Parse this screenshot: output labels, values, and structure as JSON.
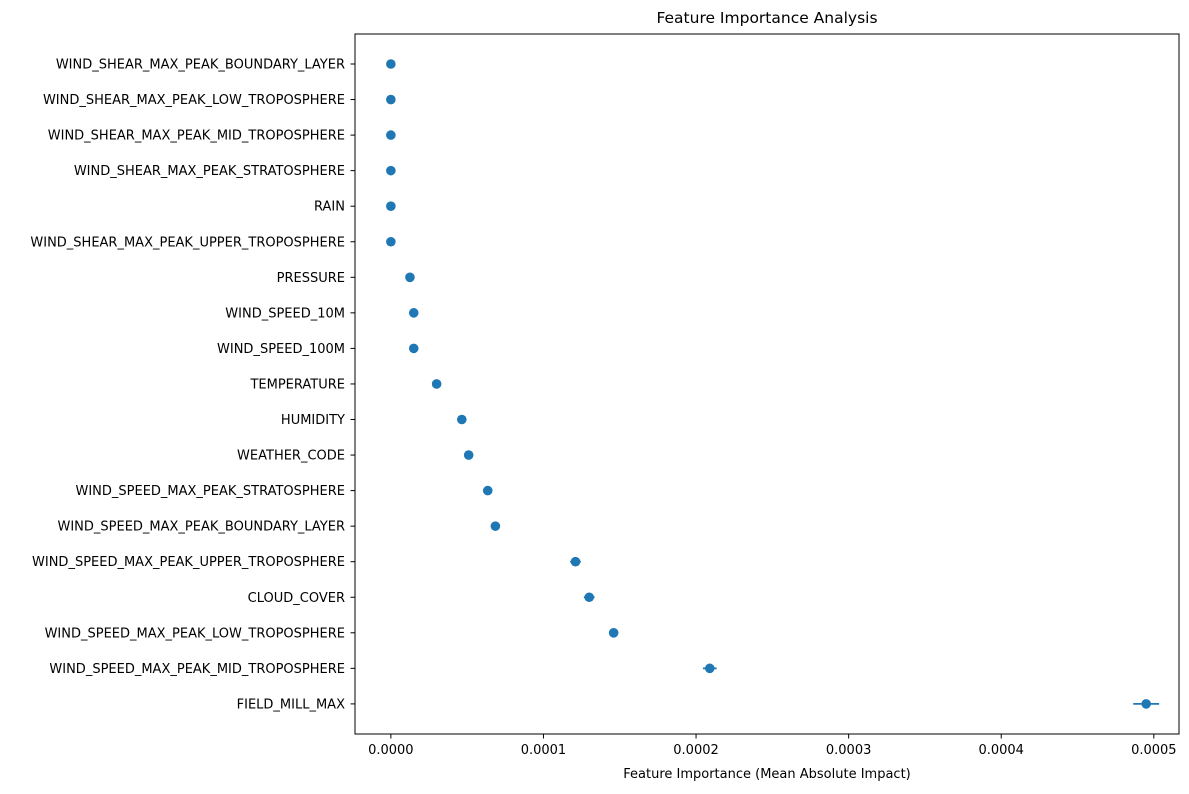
{
  "chart_data": {
    "type": "scatter",
    "title": "Feature Importance Analysis",
    "xlabel": "Feature Importance (Mean Absolute Impact)",
    "ylabel": "",
    "xlim": [
      -2.35e-05,
      0.0005165
    ],
    "x_ticks": [
      0,
      0.0001,
      0.0002,
      0.0003,
      0.0004,
      0.0005
    ],
    "x_tick_labels": [
      "0.0000",
      "0.0001",
      "0.0002",
      "0.0003",
      "0.0004",
      "0.0005"
    ],
    "grid": false,
    "legend": "none",
    "marker_color": "#1f77b4",
    "categories": [
      "WIND_SHEAR_MAX_PEAK_BOUNDARY_LAYER",
      "WIND_SHEAR_MAX_PEAK_LOW_TROPOSPHERE",
      "WIND_SHEAR_MAX_PEAK_MID_TROPOSPHERE",
      "WIND_SHEAR_MAX_PEAK_STRATOSPHERE",
      "RAIN",
      "WIND_SHEAR_MAX_PEAK_UPPER_TROPOSPHERE",
      "PRESSURE",
      "WIND_SPEED_10M",
      "WIND_SPEED_100M",
      "TEMPERATURE",
      "HUMIDITY",
      "WEATHER_CODE",
      "WIND_SPEED_MAX_PEAK_STRATOSPHERE",
      "WIND_SPEED_MAX_PEAK_BOUNDARY_LAYER",
      "WIND_SPEED_MAX_PEAK_UPPER_TROPOSPHERE",
      "CLOUD_COVER",
      "WIND_SPEED_MAX_PEAK_LOW_TROPOSPHERE",
      "WIND_SPEED_MAX_PEAK_MID_TROPOSPHERE",
      "FIELD_MILL_MAX"
    ],
    "values": [
      0.0,
      0.0,
      0.0,
      0.0,
      0.0,
      0.0,
      1.25e-05,
      1.5e-05,
      1.5e-05,
      3e-05,
      4.65e-05,
      5.1e-05,
      6.35e-05,
      6.85e-05,
      0.000121,
      0.00013,
      0.000146,
      0.000209,
      0.000495
    ],
    "errors": [
      0.0,
      0.0,
      0.0,
      0.0,
      0.0,
      0.0,
      5e-07,
      5e-07,
      5e-07,
      5e-07,
      5e-07,
      5e-07,
      5e-07,
      5e-07,
      3.5e-06,
      3.5e-06,
      3e-06,
      4.5e-06,
      8.5e-06
    ]
  }
}
